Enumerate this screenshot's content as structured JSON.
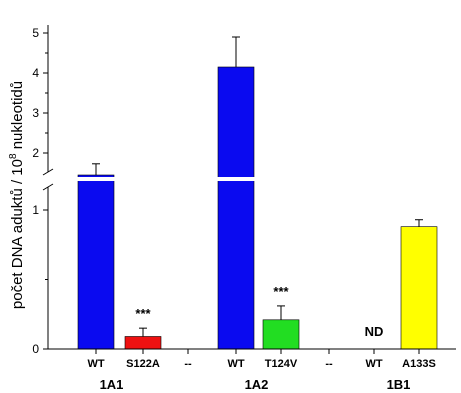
{
  "chart_data": {
    "type": "bar",
    "ylabel_parts": [
      "počet DNA aduktů / 10",
      "8",
      " nukleotidů"
    ],
    "y_axis": {
      "type": "broken",
      "lower_range": [
        0,
        1.2
      ],
      "upper_range": [
        1.5,
        5.2
      ],
      "lower_ticks": [
        "0",
        "1"
      ],
      "upper_ticks": [
        "2",
        "3",
        "4",
        "5"
      ]
    },
    "categories": [
      "WT",
      "S122A",
      "--",
      "WT",
      "T124V",
      "--",
      "WT",
      "A133S"
    ],
    "groups": [
      {
        "label": "1A1",
        "categories": [
          "WT",
          "S122A"
        ]
      },
      {
        "label": "1A2",
        "categories": [
          "WT",
          "T124V"
        ]
      },
      {
        "label": "1B1",
        "categories": [
          "WT",
          "A133S"
        ]
      }
    ],
    "bars": [
      {
        "category": "WT",
        "group": "1A1",
        "value": 1.45,
        "error": 0.28,
        "color": "#0a0af0",
        "annotation": ""
      },
      {
        "category": "S122A",
        "group": "1A1",
        "value": 0.09,
        "error": 0.06,
        "color": "#ee1111",
        "annotation": "***"
      },
      {
        "category": "WT",
        "group": "1A2",
        "value": 4.15,
        "error": 0.75,
        "color": "#0a0af0",
        "annotation": ""
      },
      {
        "category": "T124V",
        "group": "1A2",
        "value": 0.21,
        "error": 0.1,
        "color": "#22dd22",
        "annotation": "***"
      },
      {
        "category": "WT",
        "group": "1B1",
        "value": null,
        "error": null,
        "color": "",
        "annotation": "ND"
      },
      {
        "category": "A133S",
        "group": "1B1",
        "value": 0.88,
        "error": 0.05,
        "color": "#ffff00",
        "annotation": ""
      }
    ]
  }
}
